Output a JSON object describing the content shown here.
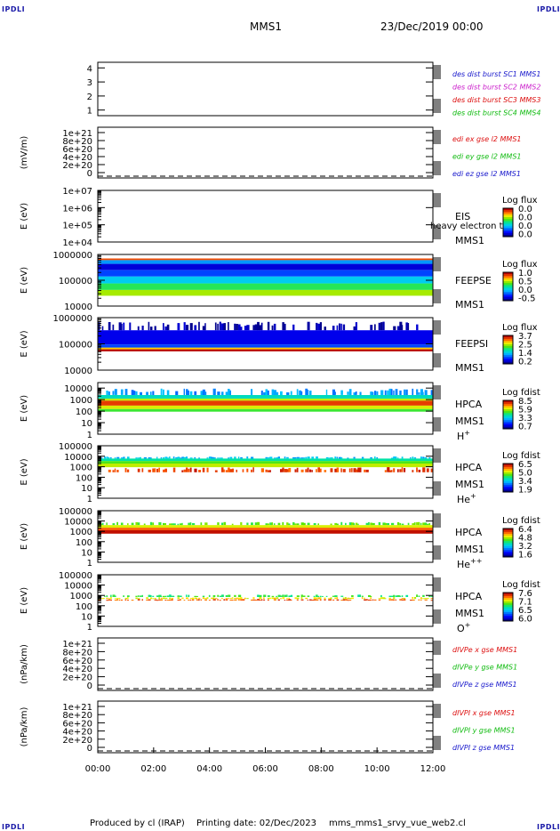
{
  "corner_tag": "IPDLI",
  "header": {
    "spacecraft": "MMS1",
    "date_time": "23/Dec/2019 00:00"
  },
  "footer": {
    "credit": "Produced by cl (IRAP)",
    "printing_date": "Printing date: 02/Dec/2023",
    "file": "mms_mms1_srvy_vue_web2.cl"
  },
  "colors": {
    "mms1": "#1a1acc",
    "mms2": "#cc22cc",
    "mms3": "#dd1111",
    "mms4": "#11bb11",
    "red": "#dd1111",
    "green": "#11bb11",
    "blue": "#1a1acc",
    "frame": "#000000"
  },
  "chart_data": [
    {
      "type": "line",
      "panel": "distribution-burst-coverage",
      "ylabel": "",
      "ytick_labels": [
        "1",
        "2",
        "3",
        "4"
      ],
      "ylim": [
        0.6,
        4.4
      ],
      "series": [
        {
          "name": "des dist burst SC1 MMS1",
          "color": "#1a1acc",
          "values": []
        },
        {
          "name": "des dist burst SC2 MMS2",
          "color": "#cc22cc",
          "values": []
        },
        {
          "name": "des dist burst SC3 MMS3",
          "color": "#dd1111",
          "values": []
        },
        {
          "name": "des dist burst SC4 MMS4",
          "color": "#11bb11",
          "values": []
        }
      ]
    },
    {
      "type": "line",
      "panel": "edi-electric-field",
      "ylabel": "(mV/m)",
      "ytick_labels": [
        "0",
        "2e+20",
        "4e+20",
        "6e+20",
        "8e+20",
        "1e+21"
      ],
      "ylim": [
        0,
        1e+21
      ],
      "dashed_zero": true,
      "series": [
        {
          "name": "edi ex gse l2 MMS1",
          "color": "#dd1111",
          "values": []
        },
        {
          "name": "edi ey gse l2 MMS1",
          "color": "#11bb11",
          "values": []
        },
        {
          "name": "edi ez gse l2 MMS1",
          "color": "#1a1acc",
          "values": []
        }
      ]
    },
    {
      "type": "heatmap",
      "panel": "eis",
      "ylabel": "E (eV)",
      "yscale": "log",
      "ytick_labels": [
        "1e+04",
        "1e+05",
        "1e+06",
        "1e+07"
      ],
      "ylim": [
        10000.0,
        10000000.0
      ],
      "instrument": "EIS",
      "spacecraft": "MMS1",
      "overlay_text": "heavy electron to",
      "colorbar": {
        "title": "Log flux",
        "ticks": [
          "0.0",
          "0.0",
          "0.0",
          "0.0"
        ]
      },
      "data": []
    },
    {
      "type": "heatmap",
      "panel": "feeps-electrons",
      "ylabel": "E (eV)",
      "yscale": "log",
      "ytick_labels": [
        "10000",
        "100000",
        "1000000"
      ],
      "ylim": [
        10000.0,
        1000000.0
      ],
      "instrument": "FEEPSE",
      "spacecraft": "MMS1",
      "colorbar": {
        "title": "Log flux",
        "ticks": [
          "1.0",
          "0.5",
          "0.0",
          "-0.5"
        ]
      },
      "bands": [
        {
          "from": 600000,
          "to": 700000,
          "level": 0.9
        },
        {
          "from": 430000,
          "to": 600000,
          "level": 0.3
        },
        {
          "from": 250000,
          "to": 430000,
          "level": 0.08
        },
        {
          "from": 140000,
          "to": 250000,
          "level": 0.2
        },
        {
          "from": 75000,
          "to": 140000,
          "level": 0.38
        },
        {
          "from": 42000,
          "to": 75000,
          "level": 0.55
        },
        {
          "from": 25000,
          "to": 42000,
          "level": 0.68
        }
      ]
    },
    {
      "type": "heatmap",
      "panel": "feeps-ions",
      "ylabel": "E (eV)",
      "yscale": "log",
      "ytick_labels": [
        "10000",
        "100000",
        "1000000"
      ],
      "ylim": [
        10000.0,
        1000000.0
      ],
      "instrument": "FEEPSI",
      "spacecraft": "MMS1",
      "colorbar": {
        "title": "Log flux",
        "ticks": [
          "3.7",
          "2.5",
          "1.4",
          "0.2"
        ]
      },
      "bands": [
        {
          "from": 330000,
          "to": 700000,
          "level": 0.02,
          "sparse": true
        },
        {
          "from": 95000,
          "to": 330000,
          "level": 0.1
        },
        {
          "from": 72000,
          "to": 95000,
          "level": 0.2
        },
        {
          "from": 62000,
          "to": 72000,
          "level": 0.78
        },
        {
          "from": 52000,
          "to": 62000,
          "level": 0.99
        }
      ]
    },
    {
      "type": "heatmap",
      "panel": "hpca-h",
      "ylabel": "E (eV)",
      "yscale": "log",
      "ytick_labels": [
        "1",
        "10",
        "100",
        "1000",
        "10000"
      ],
      "ylim": [
        1,
        30000
      ],
      "instrument": "HPCA",
      "spacecraft": "MMS1",
      "species": "H+",
      "colorbar": {
        "title": "Log fdist",
        "ticks": [
          "8.5",
          "5.9",
          "3.3",
          "0.7"
        ]
      },
      "bands": [
        {
          "from": 2500,
          "to": 9000,
          "level": 0.3,
          "sparse": true
        },
        {
          "from": 1200,
          "to": 2500,
          "level": 0.45
        },
        {
          "from": 800,
          "to": 1200,
          "level": 0.7
        },
        {
          "from": 300,
          "to": 800,
          "level": 0.92
        },
        {
          "from": 150,
          "to": 300,
          "level": 0.72
        },
        {
          "from": 90,
          "to": 150,
          "level": 0.58
        }
      ]
    },
    {
      "type": "heatmap",
      "panel": "hpca-he",
      "ylabel": "E (eV)",
      "yscale": "log",
      "ytick_labels": [
        "1",
        "10",
        "100",
        "1000",
        "10000",
        "100000"
      ],
      "ylim": [
        1,
        100000
      ],
      "instrument": "HPCA",
      "spacecraft": "MMS1",
      "species": "He+",
      "colorbar": {
        "title": "Log fdist",
        "ticks": [
          "6.5",
          "5.0",
          "3.4",
          "1.9"
        ]
      },
      "bands": [
        {
          "from": 6000,
          "to": 9500,
          "level": 0.35,
          "sparse": true
        },
        {
          "from": 3500,
          "to": 6000,
          "level": 0.48
        },
        {
          "from": 2000,
          "to": 3500,
          "level": 0.6
        },
        {
          "from": 900,
          "to": 2000,
          "level": 0.7
        },
        {
          "from": 300,
          "to": 900,
          "level": 0.92,
          "sparse": true
        }
      ]
    },
    {
      "type": "heatmap",
      "panel": "hpca-he2",
      "ylabel": "E (eV)",
      "yscale": "log",
      "ytick_labels": [
        "1",
        "10",
        "100",
        "1000",
        "10000",
        "100000"
      ],
      "ylim": [
        1,
        100000
      ],
      "instrument": "HPCA",
      "spacecraft": "MMS1",
      "species": "He++",
      "colorbar": {
        "title": "Log fdist",
        "ticks": [
          "6.4",
          "4.8",
          "3.2",
          "1.6"
        ]
      },
      "bands": [
        {
          "from": 4000,
          "to": 8000,
          "level": 0.6,
          "sparse": true
        },
        {
          "from": 2200,
          "to": 4000,
          "level": 0.72
        },
        {
          "from": 1300,
          "to": 2200,
          "level": 0.88
        },
        {
          "from": 600,
          "to": 1300,
          "level": 0.98
        }
      ]
    },
    {
      "type": "heatmap",
      "panel": "hpca-o",
      "ylabel": "E (eV)",
      "yscale": "log",
      "ytick_labels": [
        "1",
        "10",
        "100",
        "1000",
        "10000",
        "100000"
      ],
      "ylim": [
        1,
        100000
      ],
      "instrument": "HPCA",
      "spacecraft": "MMS1",
      "species": "O+",
      "colorbar": {
        "title": "Log fdist",
        "ticks": [
          "7.6",
          "7.1",
          "6.5",
          "6.0"
        ]
      },
      "bands": [
        {
          "from": 700,
          "to": 1200,
          "level": 0.55,
          "sparse": true
        },
        {
          "from": 450,
          "to": 700,
          "level": 0.75,
          "sparse": true
        },
        {
          "from": 320,
          "to": 450,
          "level": 0.9,
          "sparse": true
        }
      ]
    },
    {
      "type": "line",
      "panel": "divpe",
      "ylabel": "(nPa/km)",
      "ytick_labels": [
        "0",
        "2e+20",
        "4e+20",
        "6e+20",
        "8e+20",
        "1e+21"
      ],
      "ylim": [
        0,
        1e+21
      ],
      "dashed_zero": true,
      "series": [
        {
          "name": "dIVPe x gse MMS1",
          "color": "#dd1111",
          "values": []
        },
        {
          "name": "dIVPe y gse MMS1",
          "color": "#11bb11",
          "values": []
        },
        {
          "name": "dIVPe z gse MMS1",
          "color": "#1a1acc",
          "values": []
        }
      ]
    },
    {
      "type": "line",
      "panel": "divpi",
      "ylabel": "(nPa/km)",
      "ytick_labels": [
        "0",
        "2e+20",
        "4e+20",
        "6e+20",
        "8e+20",
        "1e+21"
      ],
      "ylim": [
        0,
        1e+21
      ],
      "dashed_zero": true,
      "series": [
        {
          "name": "dIVPI x gse MMS1",
          "color": "#dd1111",
          "values": []
        },
        {
          "name": "dIVPI y gse MMS1",
          "color": "#11bb11",
          "values": []
        },
        {
          "name": "dIVPI z gse MMS1",
          "color": "#1a1acc",
          "values": []
        }
      ]
    }
  ],
  "time_axis": {
    "ticks": [
      "00:00",
      "02:00",
      "04:00",
      "06:00",
      "08:00",
      "10:00",
      "12:00"
    ]
  }
}
